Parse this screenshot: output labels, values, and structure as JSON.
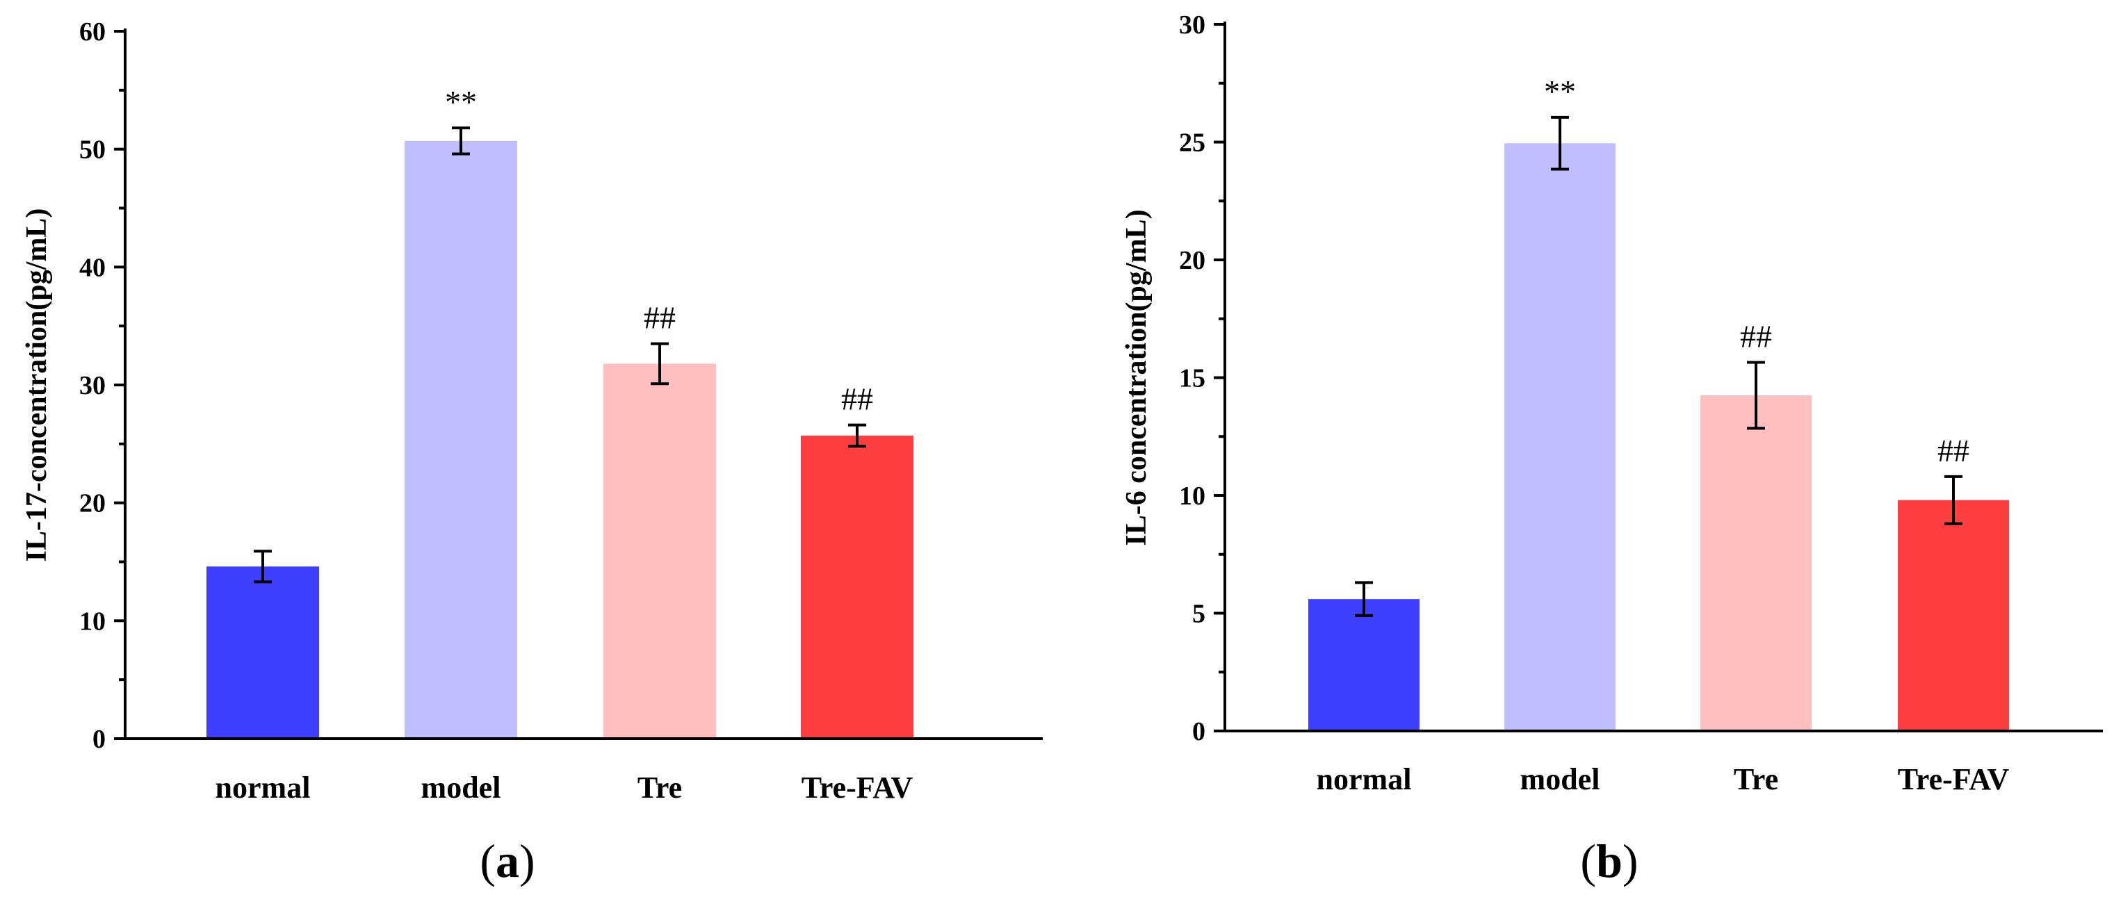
{
  "chart_data": [
    {
      "type": "bar",
      "panel": "(a)",
      "panel_letter": "a",
      "categories": [
        "normal",
        "model",
        "Tre",
        "Tre-FAV"
      ],
      "values": [
        14.6,
        50.7,
        31.8,
        25.7
      ],
      "errors": [
        1.3,
        1.1,
        1.7,
        0.9
      ],
      "annotations": [
        "",
        "**",
        "##",
        "##"
      ],
      "colors": [
        "#3f3fff",
        "#bfbfff",
        "#ffbfbf",
        "#ff3f3f"
      ],
      "ylabel": "IL-17-concentration(pg/mL)",
      "xlabel": "",
      "ylim": [
        0,
        60
      ],
      "major_ticks": [
        0,
        10,
        20,
        30,
        40,
        50,
        60
      ],
      "minor_step": 5
    },
    {
      "type": "bar",
      "panel": "(b)",
      "panel_letter": "b",
      "categories": [
        "normal",
        "model",
        "Tre",
        "Tre-FAV"
      ],
      "values": [
        5.6,
        24.95,
        14.25,
        9.8
      ],
      "errors": [
        0.7,
        1.1,
        1.4,
        1.0
      ],
      "annotations": [
        "",
        "**",
        "##",
        "##"
      ],
      "colors": [
        "#3f3fff",
        "#bfbfff",
        "#ffbfbf",
        "#ff3f3f"
      ],
      "ylabel": "IL-6 concentration(pg/mL)",
      "xlabel": "",
      "ylim": [
        0,
        30
      ],
      "major_ticks": [
        0,
        5,
        10,
        15,
        20,
        25,
        30
      ],
      "minor_step": 2.5
    }
  ]
}
